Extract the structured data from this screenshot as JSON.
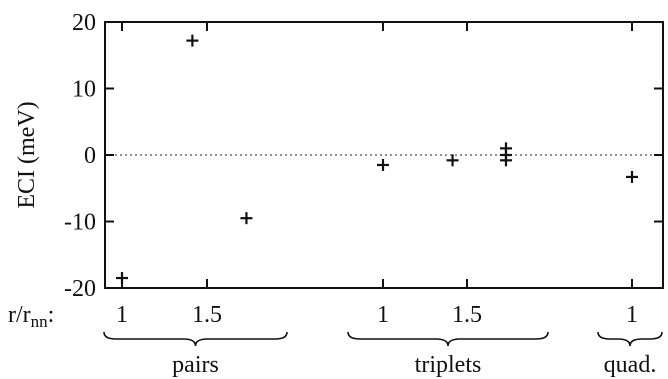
{
  "chart_data": {
    "type": "scatter",
    "ylabel": "ECI (meV)",
    "ylim": [
      -20,
      20
    ],
    "yticks": [
      20,
      10,
      0,
      -10,
      -20
    ],
    "ytick_labels": [
      "20",
      "10",
      "0",
      "-10",
      "-20"
    ],
    "zero_line": "dotted",
    "x_axis_row_label": "r/r",
    "x_axis_row_label_sub": "nn",
    "x_axis_row_label_suffix": ":",
    "groups": [
      {
        "label": "pairs",
        "tick_labels": [
          "1",
          "1.5"
        ],
        "points": [
          {
            "r": 1.0,
            "eci": -18.5
          },
          {
            "r": 1.414,
            "eci": 17.2
          },
          {
            "r": 1.732,
            "eci": -9.5
          }
        ]
      },
      {
        "label": "triplets",
        "tick_labels": [
          "1",
          "1.5"
        ],
        "points": [
          {
            "r": 1.0,
            "eci": -1.5
          },
          {
            "r": 1.414,
            "eci": -0.8
          },
          {
            "r": 1.732,
            "eci": 1.0
          },
          {
            "r": 1.732,
            "eci": 0.0
          },
          {
            "r": 1.732,
            "eci": -0.8
          }
        ]
      },
      {
        "label": "quad.",
        "tick_labels": [
          "1"
        ],
        "points": [
          {
            "r": 1.0,
            "eci": -3.3
          }
        ]
      }
    ]
  }
}
